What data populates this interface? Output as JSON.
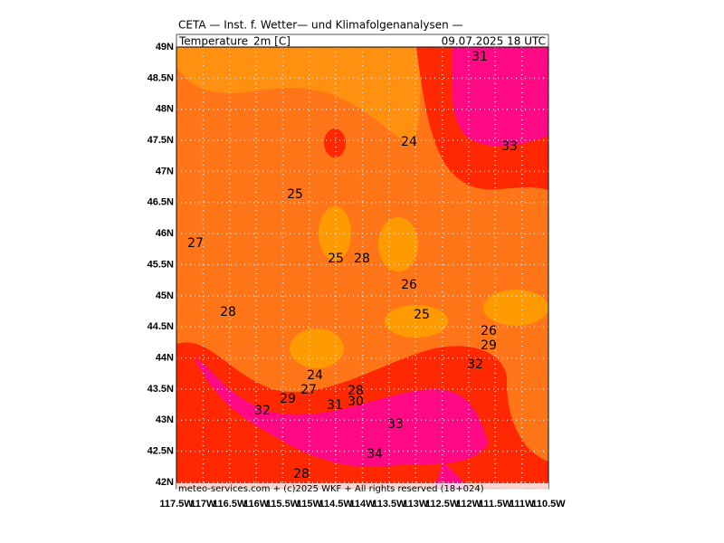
{
  "header": {
    "title": "CETA — Inst. f. Wetter— und Klimafolgenanalysen —",
    "variable": "Temperature_2m [C]",
    "datetime": "09.07.2025  18 UTC"
  },
  "map": {
    "lat_labels": [
      "49N",
      "48.5N",
      "48N",
      "47.5N",
      "47N",
      "46.5N",
      "46N",
      "45.5N",
      "45N",
      "44.5N",
      "44N",
      "43.5N",
      "43N",
      "42.5N",
      "42N"
    ],
    "lon_labels": [
      "117.5W",
      "117W",
      "116.5W",
      "116W",
      "115.5W",
      "115W",
      "114.5W",
      "114W",
      "113.5W",
      "113W",
      "112.5W",
      "112W",
      "111.5W",
      "111W",
      "110.5W"
    ],
    "contour_labels": [
      "31",
      "33",
      "24",
      "25",
      "27",
      "25",
      "28",
      "26",
      "28",
      "25",
      "26",
      "29",
      "32",
      "24",
      "27",
      "28",
      "29",
      "31",
      "30",
      "32",
      "33",
      "34",
      "28"
    ],
    "footer": "meteo-services.com + (c)2025 WKF + All rights reserved (18+024)"
  }
}
